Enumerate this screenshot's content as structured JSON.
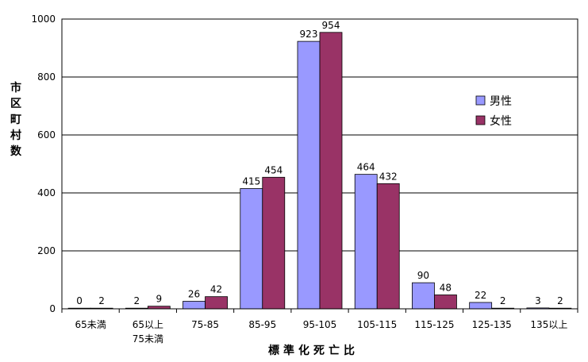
{
  "chart_data": {
    "type": "bar",
    "categories": [
      [
        "65未満"
      ],
      [
        "65以上",
        "75未満"
      ],
      [
        "75-85"
      ],
      [
        "85-95"
      ],
      [
        "95-105"
      ],
      [
        "105-115"
      ],
      [
        "115-125"
      ],
      [
        "125-135"
      ],
      [
        "135以上"
      ]
    ],
    "series": [
      {
        "name": "男性",
        "color": "#9999ff",
        "values": [
          0,
          2,
          26,
          415,
          923,
          464,
          90,
          22,
          3
        ]
      },
      {
        "name": "女性",
        "color": "#993366",
        "values": [
          2,
          9,
          42,
          454,
          954,
          432,
          48,
          2,
          2
        ]
      }
    ],
    "xlabel": "標準化死亡比",
    "ylabel": "市区町村数",
    "ylim": [
      0,
      1000
    ],
    "yticks": [
      0,
      200,
      400,
      600,
      800,
      1000
    ],
    "grid": true,
    "legend_position": "right"
  }
}
